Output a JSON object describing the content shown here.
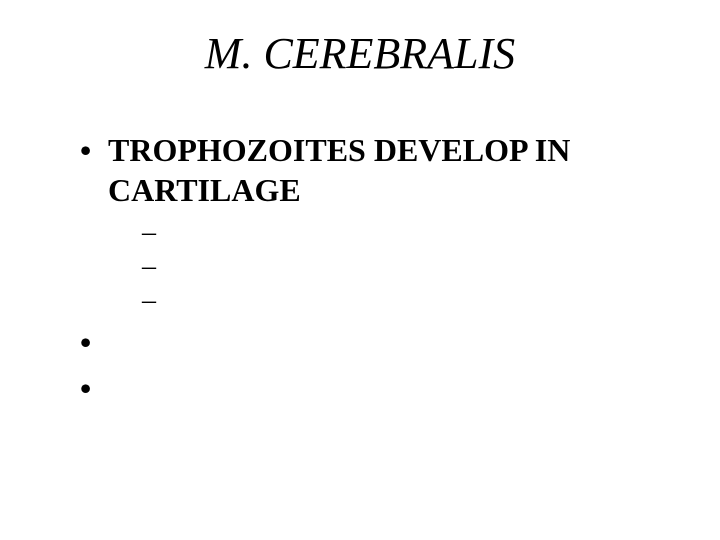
{
  "title": "M.  CEREBRALIS",
  "body": {
    "items": [
      {
        "text": "TROPHOZOITES DEVELOP IN CARTILAGE",
        "sub": [
          {
            "text": ""
          },
          {
            "text": ""
          },
          {
            "text": ""
          }
        ]
      },
      {
        "text": "",
        "sub": []
      },
      {
        "text": "",
        "sub": []
      }
    ]
  },
  "style": {
    "background_color": "#ffffff",
    "text_color": "#000000",
    "title_fontsize_pt": 33,
    "title_italic": true,
    "body_fontsize_pt": 24,
    "body_bold": true,
    "sub_fontsize_pt": 21,
    "font_family": "Times New Roman"
  }
}
